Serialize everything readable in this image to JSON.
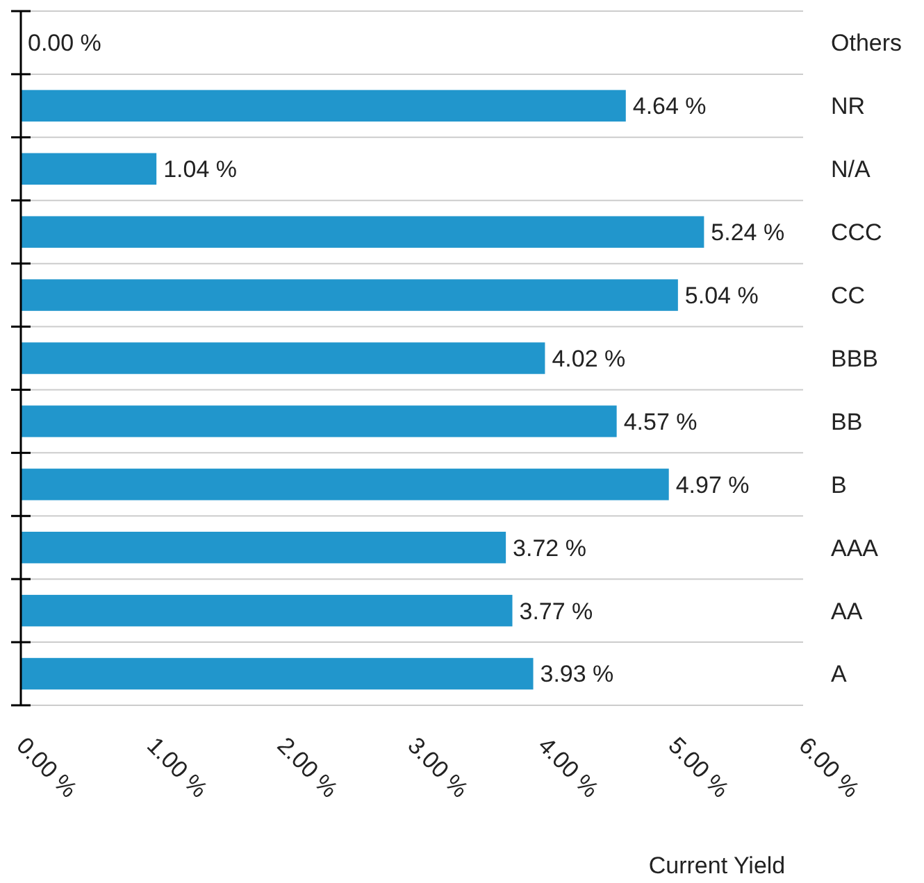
{
  "chart_data": {
    "type": "bar",
    "orientation": "horizontal",
    "xlabel": "Current Yield",
    "categories": [
      "Others",
      "NR",
      "N/A",
      "CCC",
      "CC",
      "BBB",
      "BB",
      "B",
      "AAA",
      "AA",
      "A"
    ],
    "values": [
      0,
      4.64,
      1.04,
      5.24,
      5.04,
      4.02,
      4.57,
      4.97,
      3.72,
      3.77,
      3.93
    ],
    "value_labels": [
      "0.00 %",
      "4.64 %",
      "1.04 %",
      "5.24 %",
      "5.04 %",
      "4.02 %",
      "4.57 %",
      "4.97 %",
      "3.72 %",
      "3.77 %",
      "3.93 %"
    ],
    "color": "#2196cc",
    "xlim": [
      0,
      6
    ],
    "xticks": [
      {
        "value": 0,
        "label": "0.00 %"
      },
      {
        "value": 1,
        "label": "1.00 %"
      },
      {
        "value": 2,
        "label": "2.00 %"
      },
      {
        "value": 3,
        "label": "3.00 %"
      },
      {
        "value": 4,
        "label": "4.00 %"
      },
      {
        "value": 5,
        "label": "5.00 %"
      },
      {
        "value": 6,
        "label": "6.00 %"
      }
    ],
    "grid": true
  }
}
